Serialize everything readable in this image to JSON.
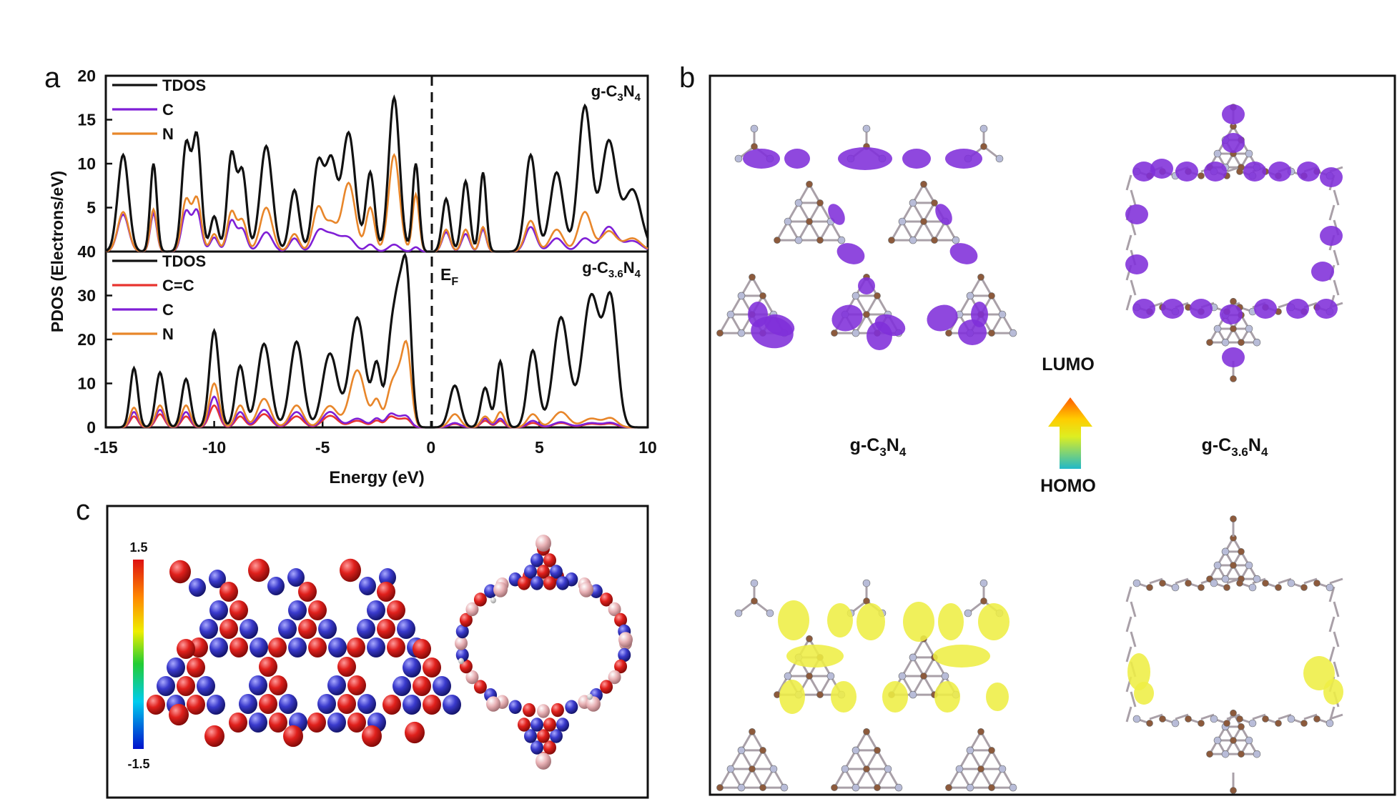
{
  "panel_labels": {
    "a": "a",
    "b": "b",
    "c": "c"
  },
  "colors": {
    "tdos": "#111111",
    "c": "#7f1fd6",
    "n": "#e8862a",
    "cc": "#e8342f",
    "lumo": "#7f2fd9",
    "homo": "#eeee44",
    "carbon": "#8c5a3c",
    "nitrogen": "#b8bcd8"
  },
  "chart_data": [
    {
      "type": "line",
      "panel": "a-top",
      "material": {
        "prefix": "g-C",
        "c_sub": "3",
        "mid": "N",
        "n_sub": "4"
      },
      "legend": [
        {
          "key": "tdos",
          "label": "TDOS"
        },
        {
          "key": "c",
          "label": "C"
        },
        {
          "key": "n",
          "label": "N"
        }
      ],
      "ylim": [
        0,
        20
      ],
      "yticks": [
        "0",
        "5",
        "10",
        "15",
        "20"
      ],
      "xlim": [
        -15,
        10
      ],
      "series": [
        {
          "key": "tdos",
          "name": "TDOS",
          "peaks": [
            [
              -14.2,
              11,
              0.25
            ],
            [
              -12.8,
              10,
              0.15
            ],
            [
              -11.3,
              12,
              0.2
            ],
            [
              -10.8,
              13,
              0.2
            ],
            [
              -10,
              4,
              0.18
            ],
            [
              -9.2,
              11,
              0.2
            ],
            [
              -8.7,
              9,
              0.2
            ],
            [
              -7.6,
              12,
              0.28
            ],
            [
              -6.3,
              7,
              0.22
            ],
            [
              -5.2,
              10,
              0.25
            ],
            [
              -4.6,
              10,
              0.25
            ],
            [
              -3.8,
              13.5,
              0.3
            ],
            [
              -2.8,
              9,
              0.2
            ],
            [
              -1.7,
              17.5,
              0.25
            ],
            [
              -0.7,
              10,
              0.15
            ],
            [
              0.7,
              6,
              0.18
            ],
            [
              1.6,
              8,
              0.18
            ],
            [
              2.4,
              9,
              0.15
            ],
            [
              4.6,
              11,
              0.25
            ],
            [
              5.8,
              9,
              0.3
            ],
            [
              7.1,
              16.5,
              0.3
            ],
            [
              8.2,
              12.5,
              0.35
            ],
            [
              9.3,
              7,
              0.4
            ]
          ]
        },
        {
          "key": "n",
          "name": "N",
          "peaks": [
            [
              -14.2,
              4.5,
              0.25
            ],
            [
              -12.8,
              4.8,
              0.15
            ],
            [
              -11.3,
              5.8,
              0.2
            ],
            [
              -10.8,
              6,
              0.2
            ],
            [
              -10,
              2,
              0.18
            ],
            [
              -9.2,
              4.5,
              0.2
            ],
            [
              -8.7,
              3.5,
              0.2
            ],
            [
              -7.6,
              5,
              0.28
            ],
            [
              -6.3,
              2,
              0.22
            ],
            [
              -5.2,
              5,
              0.25
            ],
            [
              -4.6,
              3,
              0.25
            ],
            [
              -3.8,
              7.8,
              0.3
            ],
            [
              -2.8,
              5,
              0.2
            ],
            [
              -1.7,
              11,
              0.25
            ],
            [
              -0.7,
              6.5,
              0.15
            ],
            [
              0.7,
              2.5,
              0.18
            ],
            [
              1.6,
              2.5,
              0.18
            ],
            [
              2.4,
              2.8,
              0.15
            ],
            [
              4.6,
              3.5,
              0.25
            ],
            [
              5.8,
              2.5,
              0.3
            ],
            [
              7.1,
              4.5,
              0.3
            ],
            [
              8.2,
              2.3,
              0.35
            ],
            [
              9.3,
              1.5,
              0.4
            ]
          ]
        },
        {
          "key": "c",
          "name": "C",
          "peaks": [
            [
              -14.2,
              4.2,
              0.25
            ],
            [
              -12.8,
              4.3,
              0.15
            ],
            [
              -11.3,
              4.5,
              0.2
            ],
            [
              -10.8,
              4.6,
              0.2
            ],
            [
              -10,
              1.6,
              0.18
            ],
            [
              -9.2,
              3.5,
              0.2
            ],
            [
              -8.7,
              2.5,
              0.2
            ],
            [
              -7.6,
              2.2,
              0.28
            ],
            [
              -6.3,
              1.5,
              0.22
            ],
            [
              -5.2,
              1.8,
              0.25
            ],
            [
              -4.6,
              2,
              0.4
            ],
            [
              -3.8,
              1.4,
              0.3
            ],
            [
              -2.8,
              0.8,
              0.2
            ],
            [
              -1.7,
              0.8,
              0.25
            ],
            [
              -0.7,
              0.5,
              0.15
            ],
            [
              0.7,
              2.2,
              0.18
            ],
            [
              1.6,
              2,
              0.18
            ],
            [
              2.4,
              2.5,
              0.15
            ],
            [
              4.6,
              2.8,
              0.25
            ],
            [
              5.8,
              1.5,
              0.3
            ],
            [
              7.1,
              1.5,
              0.3
            ],
            [
              8.2,
              2.8,
              0.35
            ],
            [
              9.3,
              1.2,
              0.4
            ]
          ]
        }
      ]
    },
    {
      "type": "line",
      "panel": "a-bottom",
      "material": {
        "prefix": "g-C",
        "c_sub": "3.6",
        "mid": "N",
        "n_sub": "4"
      },
      "legend": [
        {
          "key": "tdos",
          "label": "TDOS"
        },
        {
          "key": "cc",
          "label": "C=C"
        },
        {
          "key": "c",
          "label": "C"
        },
        {
          "key": "n",
          "label": "N"
        }
      ],
      "ylim": [
        0,
        40
      ],
      "yticks": [
        "0",
        "10",
        "20",
        "30",
        "40"
      ],
      "xlim": [
        -15,
        10
      ],
      "xticks": [
        "-15",
        "-10",
        "-5",
        "0",
        "5",
        "10"
      ],
      "xlabel": "Energy (eV)",
      "series": [
        {
          "key": "tdos",
          "name": "TDOS",
          "peaks": [
            [
              -13.7,
              13.5,
              0.18
            ],
            [
              -12.5,
              12.5,
              0.2
            ],
            [
              -11.3,
              11,
              0.2
            ],
            [
              -10,
              22,
              0.22
            ],
            [
              -8.8,
              14,
              0.22
            ],
            [
              -7.7,
              19,
              0.3
            ],
            [
              -6.2,
              19.5,
              0.3
            ],
            [
              -4.8,
              10,
              0.3
            ],
            [
              -4.5,
              9,
              0.3
            ],
            [
              -3.4,
              25,
              0.35
            ],
            [
              -2.5,
              14,
              0.2
            ],
            [
              -1.9,
              13,
              0.2
            ],
            [
              -1.5,
              28,
              0.25
            ],
            [
              -1.1,
              29,
              0.2
            ],
            [
              1.1,
              9.5,
              0.25
            ],
            [
              2.5,
              9,
              0.2
            ],
            [
              3.2,
              15,
              0.18
            ],
            [
              4.7,
              17.5,
              0.25
            ],
            [
              6,
              25,
              0.35
            ],
            [
              7.4,
              30,
              0.4
            ],
            [
              8.3,
              28,
              0.3
            ]
          ]
        },
        {
          "key": "n",
          "name": "N",
          "peaks": [
            [
              -13.7,
              4.5,
              0.18
            ],
            [
              -12.5,
              5,
              0.2
            ],
            [
              -11.3,
              5,
              0.2
            ],
            [
              -10,
              10,
              0.22
            ],
            [
              -8.8,
              5,
              0.22
            ],
            [
              -7.7,
              6.5,
              0.3
            ],
            [
              -6.2,
              5,
              0.3
            ],
            [
              -4.8,
              3,
              0.3
            ],
            [
              -4.5,
              2.5,
              0.3
            ],
            [
              -3.4,
              13,
              0.35
            ],
            [
              -2.5,
              6,
              0.2
            ],
            [
              -1.9,
              6,
              0.2
            ],
            [
              -1.5,
              11,
              0.25
            ],
            [
              -1.1,
              16,
              0.2
            ],
            [
              1.1,
              3,
              0.25
            ],
            [
              2.5,
              2.5,
              0.2
            ],
            [
              3.2,
              3.5,
              0.18
            ],
            [
              4.7,
              3,
              0.25
            ],
            [
              6,
              3.5,
              0.35
            ],
            [
              7.4,
              2,
              0.4
            ],
            [
              8.3,
              2,
              0.3
            ]
          ]
        },
        {
          "key": "c",
          "name": "C",
          "peaks": [
            [
              -13.7,
              3.5,
              0.18
            ],
            [
              -12.5,
              4,
              0.2
            ],
            [
              -11.3,
              3.5,
              0.2
            ],
            [
              -10,
              7,
              0.22
            ],
            [
              -8.8,
              3.5,
              0.22
            ],
            [
              -7.7,
              4,
              0.3
            ],
            [
              -6.2,
              3.5,
              0.3
            ],
            [
              -4.8,
              2,
              0.3
            ],
            [
              -4.5,
              2,
              0.3
            ],
            [
              -3.4,
              2,
              0.35
            ],
            [
              -2.5,
              2,
              0.2
            ],
            [
              -1.9,
              2.5,
              0.2
            ],
            [
              -1.5,
              2,
              0.25
            ],
            [
              -1.1,
              2,
              0.2
            ],
            [
              1.1,
              1,
              0.25
            ],
            [
              2.5,
              2,
              0.2
            ],
            [
              3.2,
              2,
              0.18
            ],
            [
              4.7,
              1.5,
              0.25
            ],
            [
              6,
              1.2,
              0.35
            ],
            [
              7.4,
              1,
              0.4
            ],
            [
              8.3,
              1,
              0.3
            ]
          ]
        },
        {
          "key": "cc",
          "name": "C=C",
          "peaks": [
            [
              -13.7,
              2.5,
              0.18
            ],
            [
              -12.5,
              3,
              0.2
            ],
            [
              -11.3,
              2.5,
              0.2
            ],
            [
              -10,
              5,
              0.22
            ],
            [
              -8.8,
              2.5,
              0.22
            ],
            [
              -7.7,
              3,
              0.3
            ],
            [
              -6.2,
              2.5,
              0.3
            ],
            [
              -4.8,
              1.5,
              0.3
            ],
            [
              -4.5,
              1.5,
              0.3
            ],
            [
              -3.4,
              1.5,
              0.35
            ],
            [
              -2.5,
              1.5,
              0.2
            ],
            [
              -1.9,
              2,
              0.2
            ],
            [
              -1.5,
              1.5,
              0.25
            ],
            [
              -1.1,
              1.5,
              0.2
            ],
            [
              1.1,
              0.8,
              0.25
            ],
            [
              2.5,
              1.5,
              0.2
            ],
            [
              3.2,
              1.5,
              0.18
            ],
            [
              4.7,
              1,
              0.25
            ],
            [
              6,
              1,
              0.35
            ],
            [
              7.4,
              0.8,
              0.4
            ],
            [
              8.3,
              0.8,
              0.3
            ]
          ]
        }
      ]
    }
  ],
  "panel_a": {
    "ylabel": "PDOS (Electrons/eV)",
    "fermi_label": "E",
    "fermi_sub": "F"
  },
  "panel_b": {
    "lumo_label": "LUMO",
    "homo_label": "HOMO",
    "material_left": {
      "prefix": "g-C",
      "c_sub": "3",
      "mid": "N",
      "n_sub": "4"
    },
    "material_right": {
      "prefix": "g-C",
      "c_sub": "3.6",
      "mid": "N",
      "n_sub": "4"
    }
  },
  "panel_c": {
    "scale_max": "1.5",
    "scale_min": "-1.5"
  }
}
